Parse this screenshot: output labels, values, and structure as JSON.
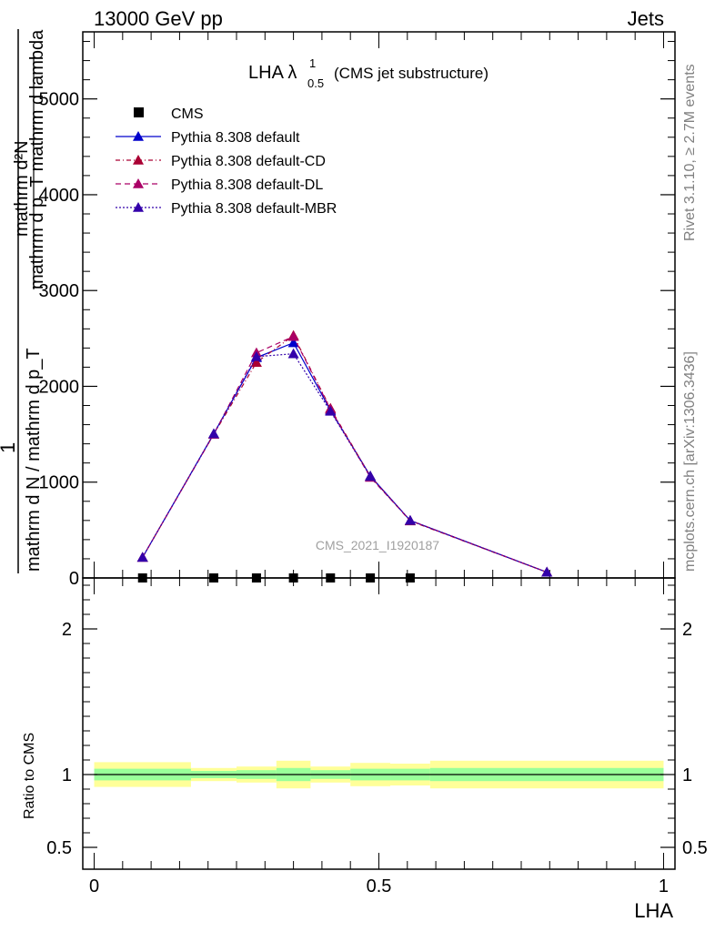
{
  "header": {
    "left": "13000 GeV pp",
    "right": "Jets"
  },
  "side_text": {
    "rivet": "Rivet 3.1.10, ≥ 2.7M events",
    "mcplots": "mcplots.cern.ch [arXiv:1306.3436]"
  },
  "watermark": "CMS_2021_I1920187",
  "plot_title": {
    "main": "LHA λ",
    "sup": "1",
    "sub": "0.5",
    "suffix": "(CMS jet substructure)"
  },
  "ylabel_main": {
    "line1": "mathrm d²N",
    "line2": "mathrm d p_T mathrm d lambda",
    "one": "1",
    "line3": "mathrm d N / mathrm d p_T"
  },
  "ylabel_ratio": "Ratio to CMS",
  "xlabel": "LHA",
  "main_ticks": [
    "0",
    "1000",
    "2000",
    "3000",
    "4000",
    "5000"
  ],
  "ratio_ticks": [
    "0.5",
    "1",
    "2"
  ],
  "x_ticks": [
    "0",
    "0.5",
    "1"
  ],
  "legend": [
    {
      "label": "CMS",
      "marker": "square",
      "color": "#000000",
      "dash": ""
    },
    {
      "label": "Pythia 8.308 default",
      "marker": "triangle",
      "color": "#0000cc",
      "dash": ""
    },
    {
      "label": "Pythia 8.308 default-CD",
      "marker": "triangle",
      "color": "#aa0033",
      "dash": "5,3,1,3"
    },
    {
      "label": "Pythia 8.308 default-DL",
      "marker": "triangle",
      "color": "#aa0066",
      "dash": "6,4"
    },
    {
      "label": "Pythia 8.308 default-MBR",
      "marker": "triangle",
      "color": "#3300aa",
      "dash": "2,2"
    }
  ],
  "chart_data": {
    "type": "line",
    "xlim": [
      -0.02,
      1.02
    ],
    "main_ylim": [
      0,
      5700
    ],
    "ratio_ylim": [
      0.35,
      2.35
    ],
    "x": [
      0.085,
      0.21,
      0.285,
      0.35,
      0.415,
      0.485,
      0.555,
      0.795
    ],
    "cms": {
      "x": [
        0.085,
        0.21,
        0.285,
        0.35,
        0.415,
        0.485,
        0.555
      ],
      "values": [
        0,
        0,
        0,
        0,
        0,
        0,
        0
      ]
    },
    "series": [
      {
        "name": "Pythia 8.308 default",
        "values": [
          215,
          1505,
          2300,
          2455,
          1750,
          1065,
          600,
          60
        ]
      },
      {
        "name": "Pythia 8.308 default-CD",
        "values": [
          215,
          1500,
          2250,
          2530,
          1770,
          1060,
          595,
          60
        ]
      },
      {
        "name": "Pythia 8.308 default-DL",
        "values": [
          215,
          1500,
          2350,
          2520,
          1760,
          1050,
          600,
          60
        ]
      },
      {
        "name": "Pythia 8.308 default-MBR",
        "values": [
          215,
          1505,
          2310,
          2340,
          1740,
          1060,
          600,
          60
        ]
      }
    ],
    "ratio_bands": {
      "edges": [
        0.0,
        0.17,
        0.25,
        0.32,
        0.38,
        0.45,
        0.52,
        0.59,
        1.0
      ],
      "inner_lo": [
        0.96,
        0.975,
        0.97,
        0.955,
        0.97,
        0.96,
        0.96,
        0.955
      ],
      "inner_hi": [
        1.04,
        1.025,
        1.03,
        1.045,
        1.03,
        1.04,
        1.04,
        1.045
      ],
      "outer_lo": [
        0.915,
        0.955,
        0.945,
        0.905,
        0.945,
        0.92,
        0.925,
        0.905
      ],
      "outer_hi": [
        1.085,
        1.045,
        1.055,
        1.095,
        1.055,
        1.08,
        1.075,
        1.095
      ]
    }
  }
}
